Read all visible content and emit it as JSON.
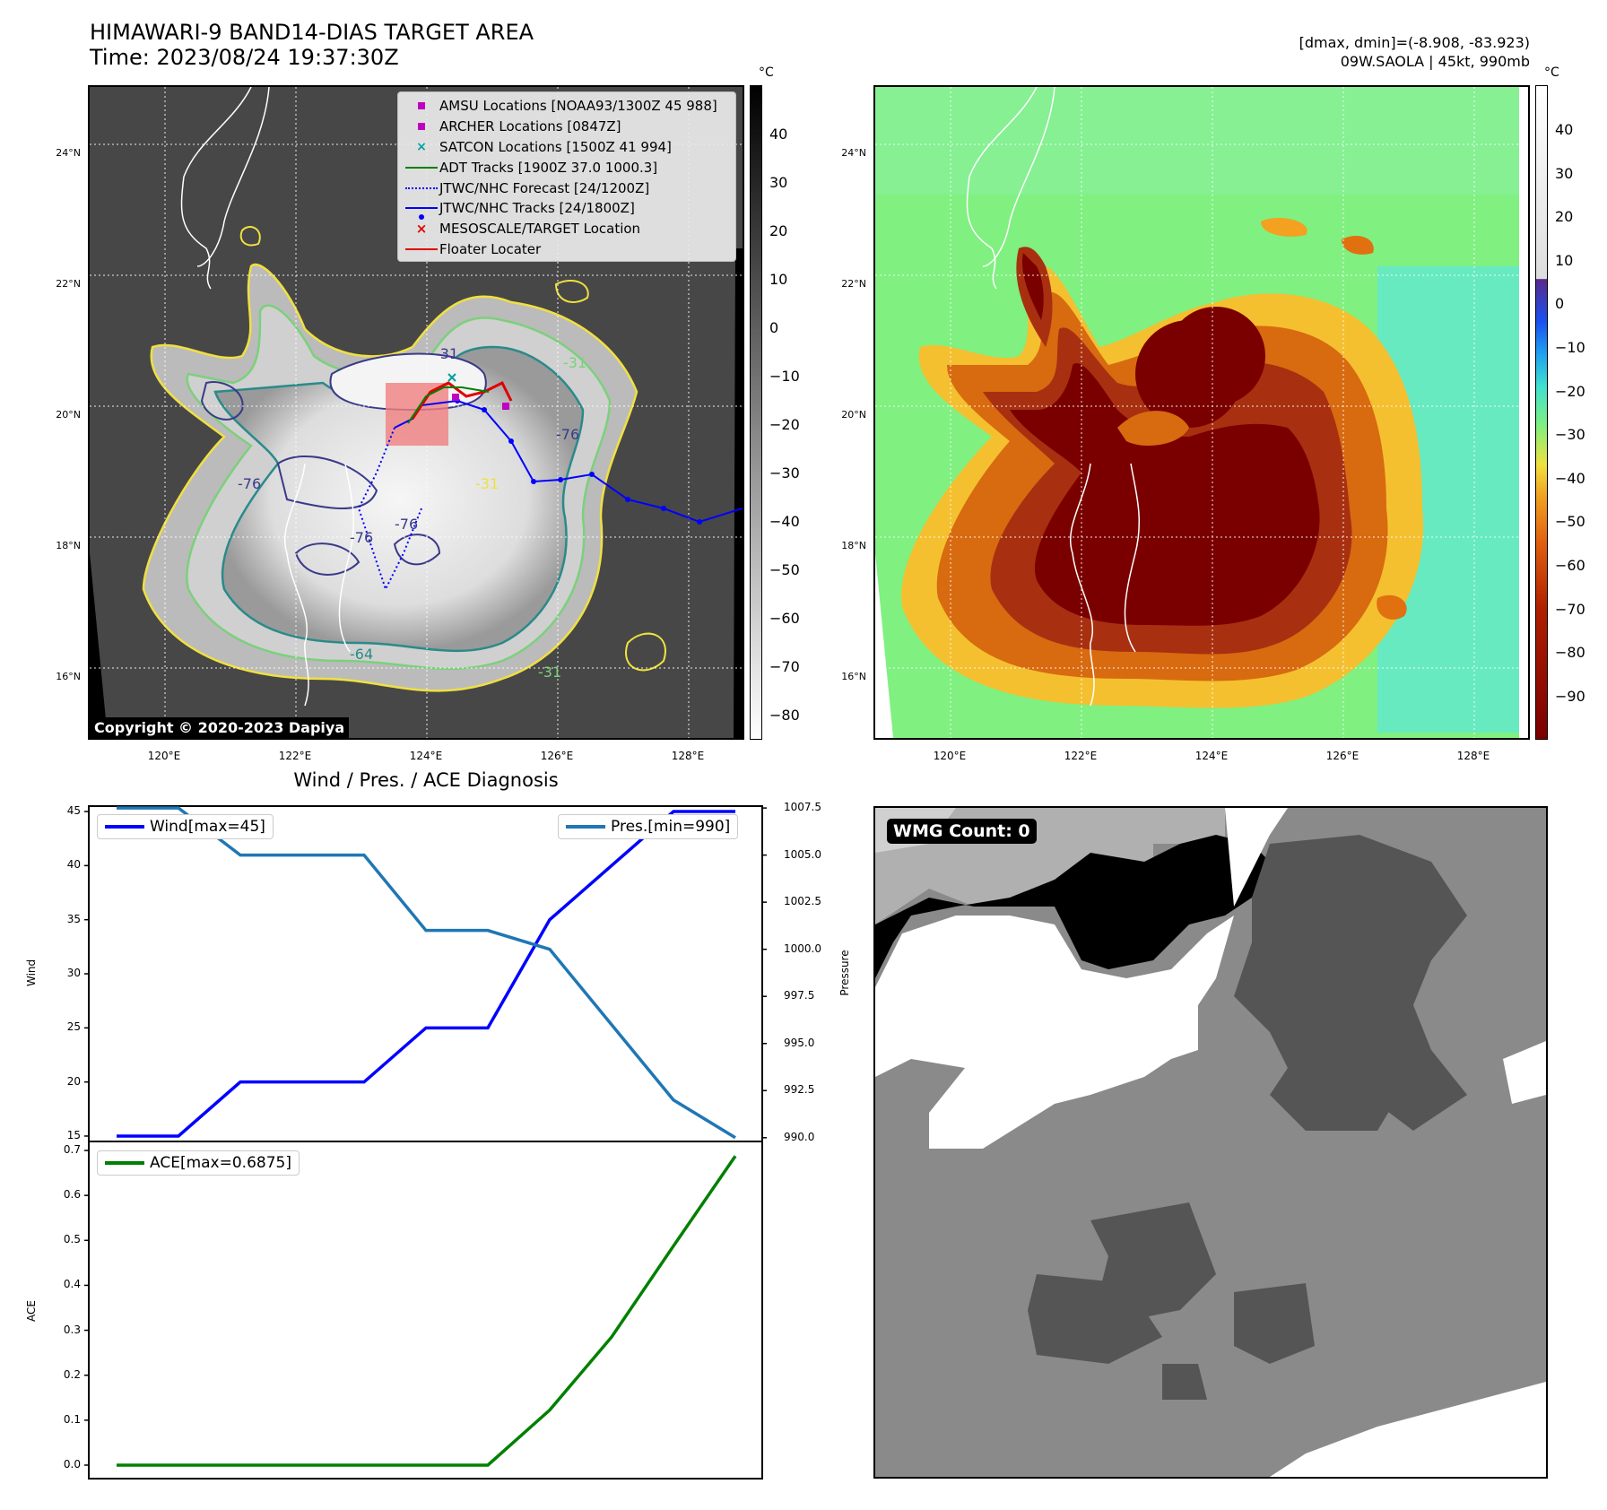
{
  "header": {
    "title_line1": "HIMAWARI-9 BAND14-DIAS TARGET AREA",
    "title_line2": "Time: 2023/08/24 19:37:30Z",
    "right_line1": "[dmax, dmin]=(-8.908, -83.923)",
    "right_line2": "09W.SAOLA | 45kt, 990mb"
  },
  "map": {
    "lat_labels": [
      "24°N",
      "22°N",
      "20°N",
      "18°N",
      "16°N"
    ],
    "lon_labels": [
      "120°E",
      "122°E",
      "124°E",
      "126°E",
      "128°E"
    ],
    "copyright": "Copyright © 2020-2023 Dapiya"
  },
  "colorbar_left": {
    "unit": "°C",
    "ticks": [
      "40",
      "30",
      "20",
      "10",
      "0",
      "−10",
      "−20",
      "−30",
      "−40",
      "−50",
      "−60",
      "−70",
      "−80"
    ]
  },
  "colorbar_right": {
    "unit": "°C",
    "ticks": [
      "40",
      "30",
      "20",
      "10",
      "0",
      "−10",
      "−20",
      "−30",
      "−40",
      "−50",
      "−60",
      "−70",
      "−80",
      "−90"
    ]
  },
  "legend": {
    "items": [
      {
        "label": "AMSU Locations [NOAA93/1300Z 45 988]",
        "color": "#c000c0",
        "symbol": "square"
      },
      {
        "label": "ARCHER Locations [0847Z]",
        "color": "#c000c0",
        "symbol": "square"
      },
      {
        "label": "SATCON Locations [1500Z 41 994]",
        "color": "#00a0a0",
        "symbol": "x"
      },
      {
        "label": "ADT Tracks [1900Z 37.0 1000.3]",
        "color": "#008000",
        "symbol": "line"
      },
      {
        "label": "JTWC/NHC Forecast [24/1200Z]",
        "color": "#0000ff",
        "symbol": "dotted"
      },
      {
        "label": "JTWC/NHC Tracks [24/1800Z]",
        "color": "#0000ff",
        "symbol": "line-dot"
      },
      {
        "label": "MESOSCALE/TARGET Location",
        "color": "#e00000",
        "symbol": "x"
      },
      {
        "label": "Floater Locater",
        "color": "#e00000",
        "symbol": "line"
      }
    ]
  },
  "contour_labels": [
    "-31",
    "-31",
    "-76",
    "-76",
    "-76",
    "-76",
    "-64",
    "-31",
    "-31"
  ],
  "diagnosis": {
    "title": "Wind / Pres. / ACE Diagnosis",
    "wind_legend": "Wind[max=45]",
    "pres_legend": "Pres.[min=990]",
    "ace_legend": "ACE[max=0.6875]",
    "wind_ylabel": "Wind",
    "pres_ylabel": "Pressure",
    "ace_ylabel": "ACE"
  },
  "wmg": {
    "label": "WMG Count: 0"
  },
  "chart_data": [
    {
      "type": "line",
      "title": "Wind / Pres. / ACE Diagnosis",
      "ylabel": "Wind",
      "ylim": [
        14.5,
        45.5
      ],
      "yticks": [
        15,
        20,
        25,
        30,
        35,
        40,
        45
      ],
      "series": [
        {
          "name": "Wind[max=45]",
          "color": "#0000ff",
          "axis": "left",
          "values": [
            15,
            15,
            20,
            20,
            20,
            25,
            25,
            35,
            40,
            45,
            45
          ]
        }
      ],
      "secondary_axis": {
        "ylabel": "Pressure",
        "ylim": [
          989.8,
          1007.6
        ],
        "yticks": [
          990.0,
          992.5,
          995.0,
          997.5,
          1000.0,
          1002.5,
          1005.0,
          1007.5
        ],
        "series": [
          {
            "name": "Pres.[min=990]",
            "color": "#1f77b4",
            "values": [
              1007.5,
              1007.5,
              1005,
              1005,
              1005,
              1001,
              1001,
              1000,
              996,
              992,
              990
            ]
          }
        ]
      }
    },
    {
      "type": "line",
      "ylabel": "ACE",
      "ylim": [
        -0.03,
        0.72
      ],
      "yticks": [
        0.0,
        0.1,
        0.2,
        0.3,
        0.4,
        0.5,
        0.6,
        0.7
      ],
      "series": [
        {
          "name": "ACE[max=0.6875]",
          "color": "#008000",
          "values": [
            0,
            0,
            0,
            0,
            0,
            0,
            0,
            0.1225,
            0.285,
            0.4875,
            0.6875
          ]
        }
      ]
    }
  ]
}
